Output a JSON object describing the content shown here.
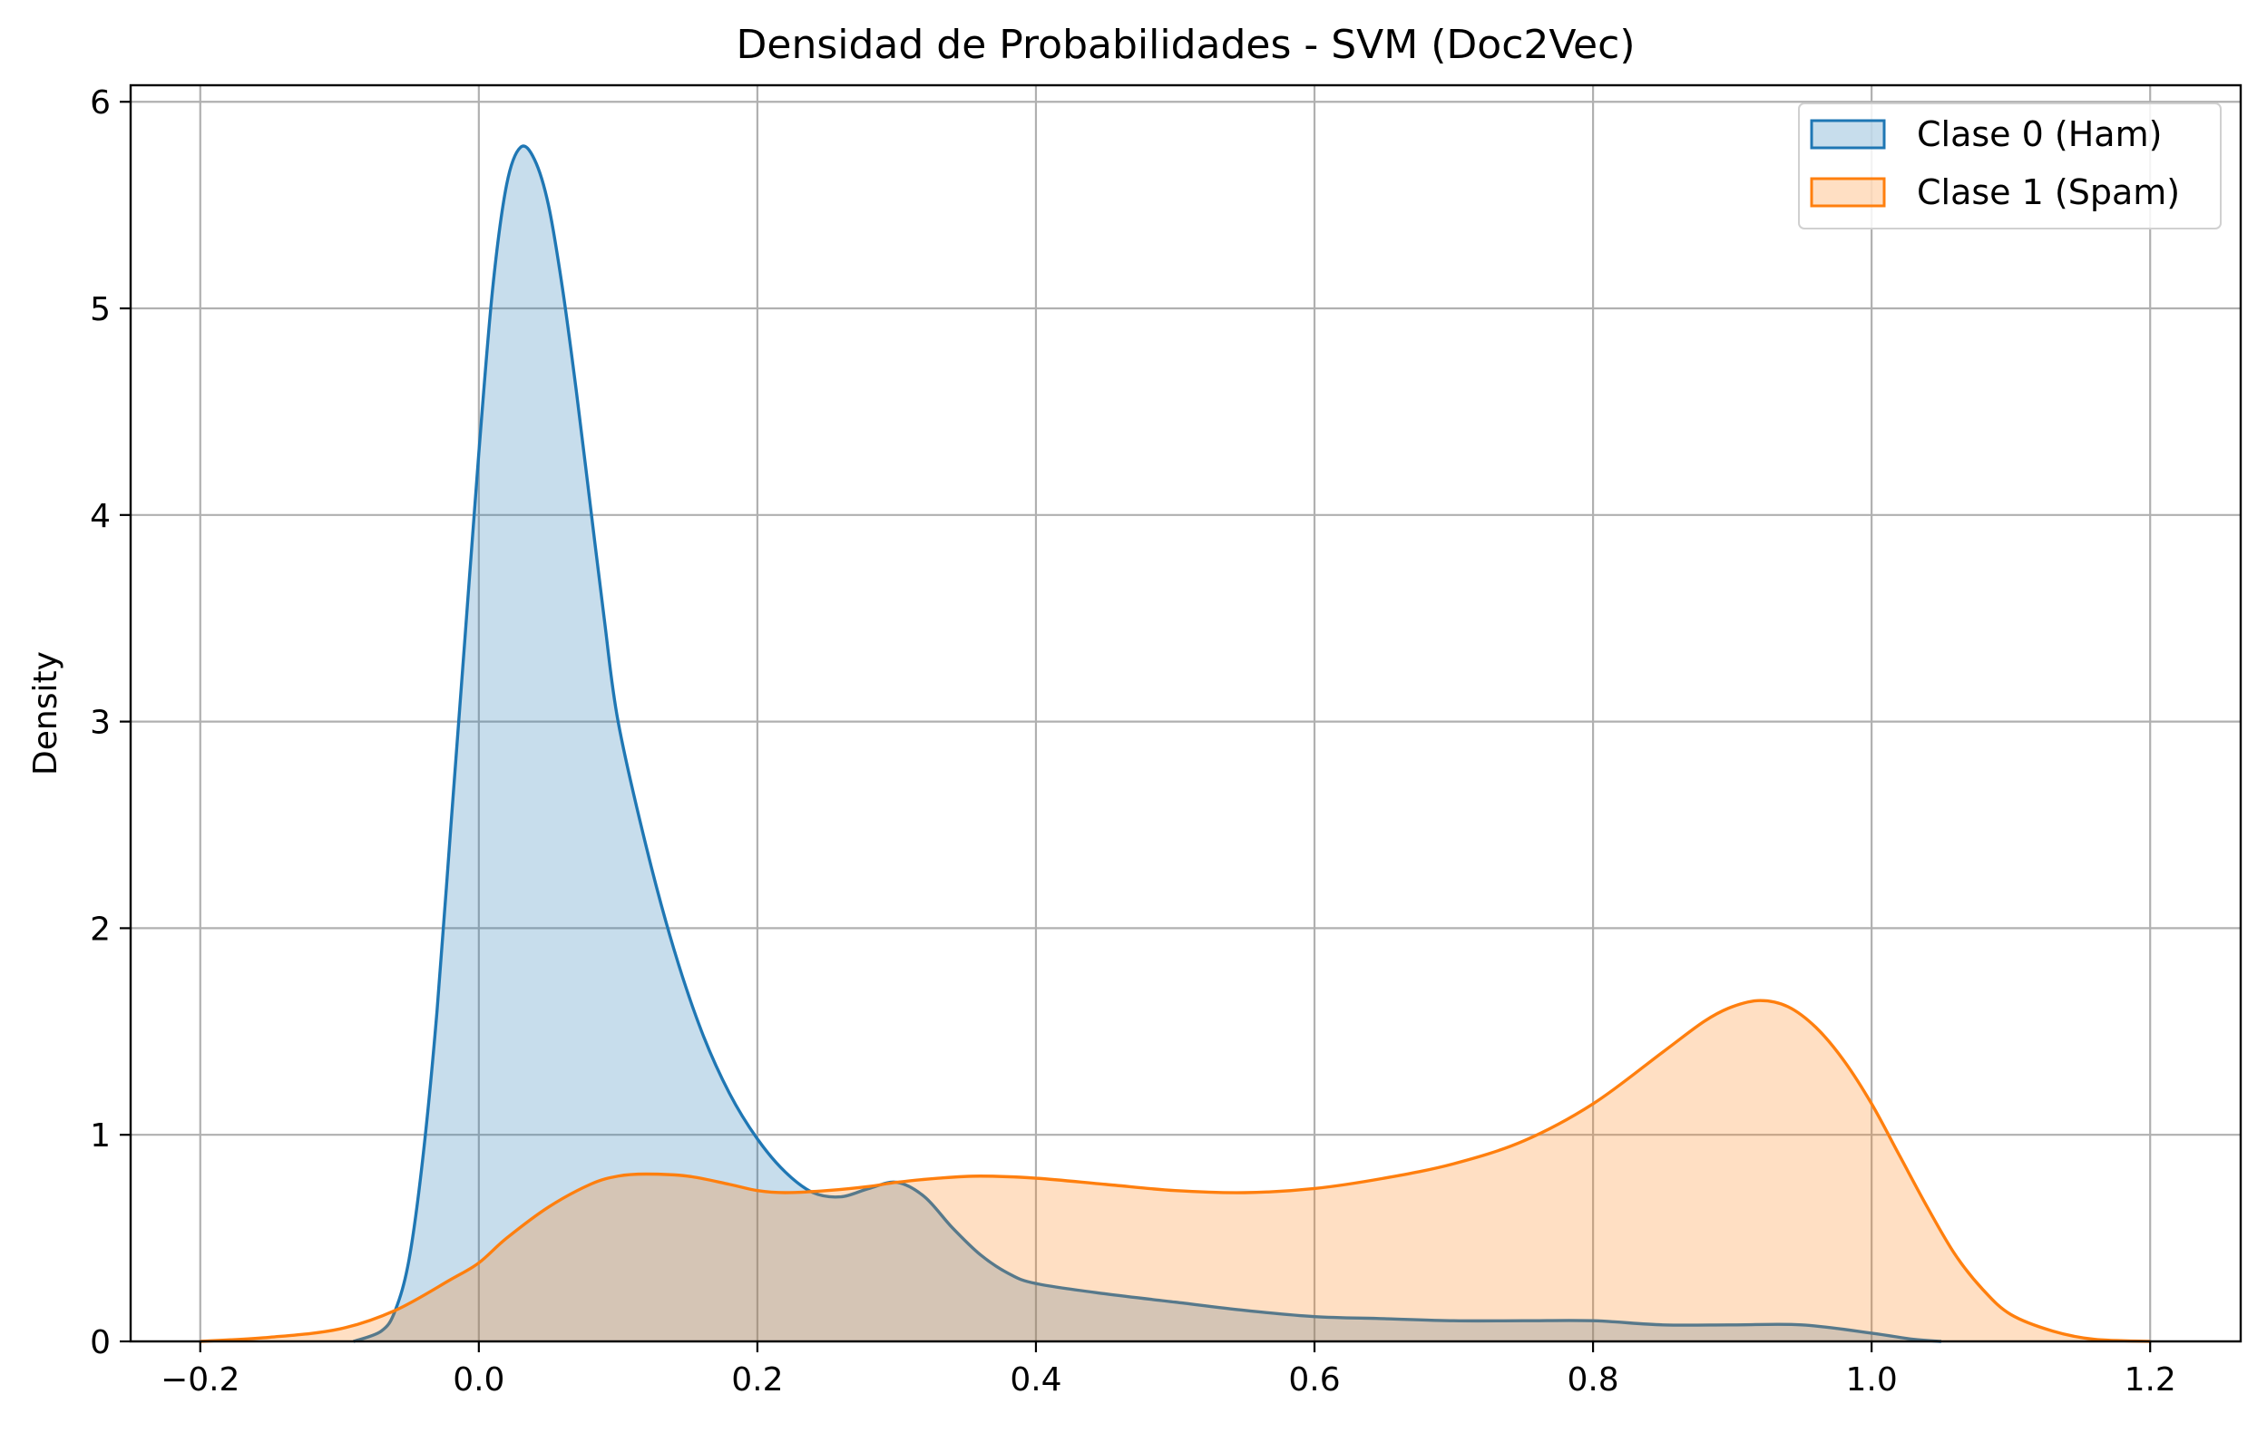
{
  "chart_data": {
    "type": "area",
    "title": "Densidad de Probabilidades - SVM (Doc2Vec)",
    "xlabel": "",
    "ylabel": "Density",
    "xlim": [
      -0.25,
      1.265
    ],
    "ylim": [
      0,
      6.08
    ],
    "xticks": [
      -0.2,
      0.0,
      0.2,
      0.4,
      0.6,
      0.8,
      1.0,
      1.2
    ],
    "xtick_labels": [
      "−0.2",
      "0.0",
      "0.2",
      "0.4",
      "0.6",
      "0.8",
      "1.0",
      "1.2"
    ],
    "yticks": [
      0,
      1,
      2,
      3,
      4,
      5,
      6
    ],
    "ytick_labels": [
      "0",
      "1",
      "2",
      "3",
      "4",
      "5",
      "6"
    ],
    "grid": true,
    "legend_position": "top-right",
    "series": [
      {
        "name": "Clase 0 (Ham)",
        "color": "#1f77b4",
        "fill_color": "#1f77b4",
        "fill_opacity": 0.25,
        "x": [
          -0.09,
          -0.07,
          -0.06,
          -0.05,
          -0.04,
          -0.03,
          -0.02,
          -0.01,
          0.0,
          0.01,
          0.02,
          0.03,
          0.04,
          0.05,
          0.06,
          0.07,
          0.08,
          0.09,
          0.1,
          0.12,
          0.14,
          0.16,
          0.18,
          0.2,
          0.22,
          0.24,
          0.26,
          0.28,
          0.3,
          0.32,
          0.34,
          0.36,
          0.38,
          0.4,
          0.45,
          0.5,
          0.55,
          0.6,
          0.65,
          0.7,
          0.75,
          0.8,
          0.85,
          0.9,
          0.95,
          1.0,
          1.03,
          1.05
        ],
        "y": [
          0.0,
          0.05,
          0.15,
          0.4,
          0.9,
          1.6,
          2.5,
          3.4,
          4.3,
          5.1,
          5.6,
          5.78,
          5.72,
          5.5,
          5.1,
          4.6,
          4.05,
          3.5,
          3.0,
          2.4,
          1.9,
          1.5,
          1.2,
          0.98,
          0.82,
          0.72,
          0.7,
          0.74,
          0.77,
          0.7,
          0.55,
          0.42,
          0.33,
          0.28,
          0.23,
          0.19,
          0.15,
          0.12,
          0.11,
          0.1,
          0.1,
          0.1,
          0.08,
          0.08,
          0.08,
          0.04,
          0.01,
          0.0
        ]
      },
      {
        "name": "Clase 1 (Spam)",
        "color": "#ff7f0e",
        "fill_color": "#ff7f0e",
        "fill_opacity": 0.25,
        "x": [
          -0.2,
          -0.15,
          -0.1,
          -0.06,
          -0.02,
          0.0,
          0.02,
          0.05,
          0.08,
          0.1,
          0.12,
          0.15,
          0.18,
          0.2,
          0.22,
          0.25,
          0.28,
          0.3,
          0.33,
          0.36,
          0.4,
          0.45,
          0.5,
          0.55,
          0.6,
          0.65,
          0.7,
          0.75,
          0.8,
          0.85,
          0.88,
          0.9,
          0.92,
          0.94,
          0.96,
          0.98,
          1.0,
          1.02,
          1.04,
          1.06,
          1.08,
          1.1,
          1.13,
          1.16,
          1.2
        ],
        "y": [
          0.0,
          0.02,
          0.06,
          0.15,
          0.3,
          0.38,
          0.5,
          0.65,
          0.76,
          0.8,
          0.81,
          0.8,
          0.76,
          0.73,
          0.72,
          0.73,
          0.75,
          0.77,
          0.79,
          0.8,
          0.79,
          0.76,
          0.73,
          0.72,
          0.74,
          0.79,
          0.86,
          0.97,
          1.15,
          1.4,
          1.55,
          1.62,
          1.65,
          1.62,
          1.52,
          1.36,
          1.15,
          0.9,
          0.65,
          0.42,
          0.25,
          0.13,
          0.05,
          0.01,
          0.0
        ]
      }
    ]
  }
}
